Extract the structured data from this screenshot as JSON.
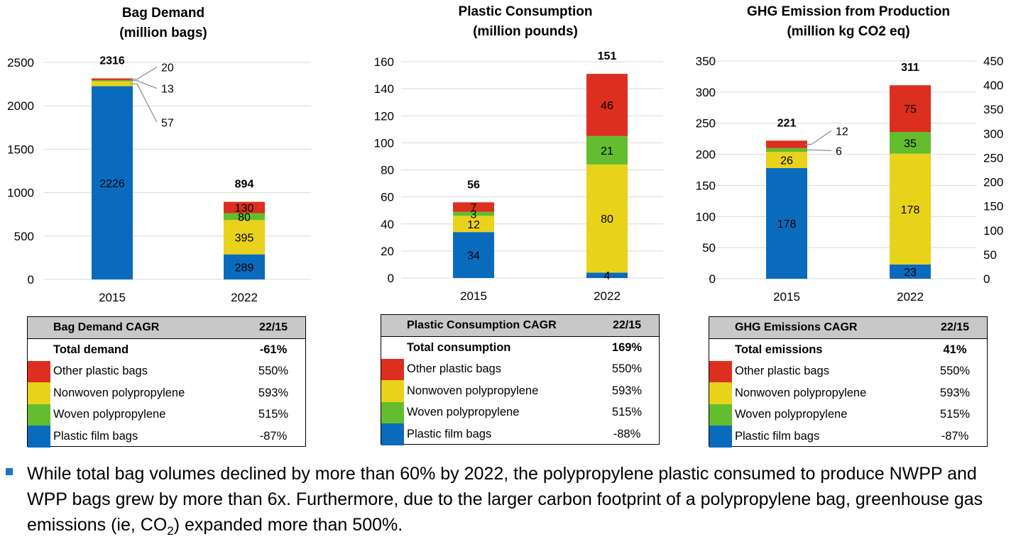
{
  "colors": {
    "other_plastic_bags": "#dc2f1f",
    "nonwoven_polypropylene": "#e9d21a",
    "woven_polypropylene": "#63bd2e",
    "plastic_film_bags": "#0a6bbd"
  },
  "chart_data": [
    {
      "type": "bar",
      "stacked": true,
      "title": "Bag Demand\n(million bags)",
      "title_lines": [
        "Bag Demand",
        "(million bags)"
      ],
      "categories": [
        "2015",
        "2022"
      ],
      "ylim": [
        0,
        2500
      ],
      "yticks": [
        0,
        500,
        1000,
        1500,
        2000,
        2500
      ],
      "series": [
        {
          "name": "Plastic film bags",
          "values": [
            2226,
            289
          ]
        },
        {
          "name": "Nonwoven polypropylene",
          "values": [
            57,
            395
          ]
        },
        {
          "name": "Woven polypropylene",
          "values": [
            13,
            80
          ]
        },
        {
          "name": "Other plastic bags",
          "values": [
            20,
            130
          ]
        }
      ],
      "totals": [
        2316,
        894
      ],
      "grid": true
    },
    {
      "type": "bar",
      "stacked": true,
      "title": "Plastic Consumption\n(million pounds)",
      "title_lines": [
        "Plastic Consumption",
        "(million pounds)"
      ],
      "categories": [
        "2015",
        "2022"
      ],
      "ylim": [
        0,
        160
      ],
      "yticks": [
        0,
        20,
        40,
        60,
        80,
        100,
        120,
        140,
        160
      ],
      "series": [
        {
          "name": "Plastic film bags",
          "values": [
            34,
            4
          ]
        },
        {
          "name": "Nonwoven polypropylene",
          "values": [
            12,
            80
          ]
        },
        {
          "name": "Woven polypropylene",
          "values": [
            3,
            21
          ]
        },
        {
          "name": "Other plastic bags",
          "values": [
            7,
            46
          ]
        }
      ],
      "totals": [
        56,
        151
      ],
      "grid": true
    },
    {
      "type": "bar",
      "stacked": true,
      "title": "GHG Emission from Production\n(million kg CO2 eq)",
      "title_lines": [
        "GHG Emission from Production",
        "(million kg CO2 eq)"
      ],
      "categories": [
        "2015",
        "2022"
      ],
      "ylim": [
        0,
        350
      ],
      "yticks": [
        0,
        50,
        100,
        150,
        200,
        250,
        300,
        350
      ],
      "ylim_right": [
        0,
        450
      ],
      "yticks_right": [
        0,
        50,
        100,
        150,
        200,
        250,
        300,
        350,
        400,
        450
      ],
      "series": [
        {
          "name": "Plastic film bags",
          "values": [
            178,
            23
          ]
        },
        {
          "name": "Nonwoven polypropylene",
          "values": [
            26,
            178
          ]
        },
        {
          "name": "Woven polypropylene",
          "values": [
            6,
            35
          ]
        },
        {
          "name": "Other plastic bags",
          "values": [
            12,
            75
          ]
        }
      ],
      "totals": [
        221,
        311
      ],
      "grid": true
    }
  ],
  "tables": [
    {
      "header": "Bag Demand CAGR",
      "period": "22/15",
      "total_label": "Total demand",
      "total_value": "-61%",
      "rows": [
        {
          "label": "Other plastic bags",
          "value": "550%"
        },
        {
          "label": "Nonwoven polypropylene",
          "value": "593%"
        },
        {
          "label": "Woven polypropylene",
          "value": "515%"
        },
        {
          "label": "Plastic film bags",
          "value": "-87%"
        }
      ]
    },
    {
      "header": "Plastic Consumption CAGR",
      "period": "22/15",
      "total_label": "Total consumption",
      "total_value": "169%",
      "rows": [
        {
          "label": "Other plastic bags",
          "value": "550%"
        },
        {
          "label": "Nonwoven polypropylene",
          "value": "593%"
        },
        {
          "label": "Woven polypropylene",
          "value": "515%"
        },
        {
          "label": "Plastic film bags",
          "value": "-88%"
        }
      ]
    },
    {
      "header": "GHG Emissions CAGR",
      "period": "22/15",
      "total_label": "Total emissions",
      "total_value": "41%",
      "rows": [
        {
          "label": "Other plastic bags",
          "value": "550%"
        },
        {
          "label": "Nonwoven polypropylene",
          "value": "593%"
        },
        {
          "label": "Woven polypropylene",
          "value": "515%"
        },
        {
          "label": "Plastic film bags",
          "value": "-87%"
        }
      ]
    }
  ],
  "footnote": {
    "part1": "While total bag volumes declined by more than 60% by 2022, the polypropylene plastic consumed to produce NWPP and WPP bags grew by more than 6x. Furthermore, due to the larger carbon footprint of a polypropylene bag, greenhouse gas emissions (ie, CO",
    "sub": "2",
    "part2": ") expanded more than 500%."
  }
}
